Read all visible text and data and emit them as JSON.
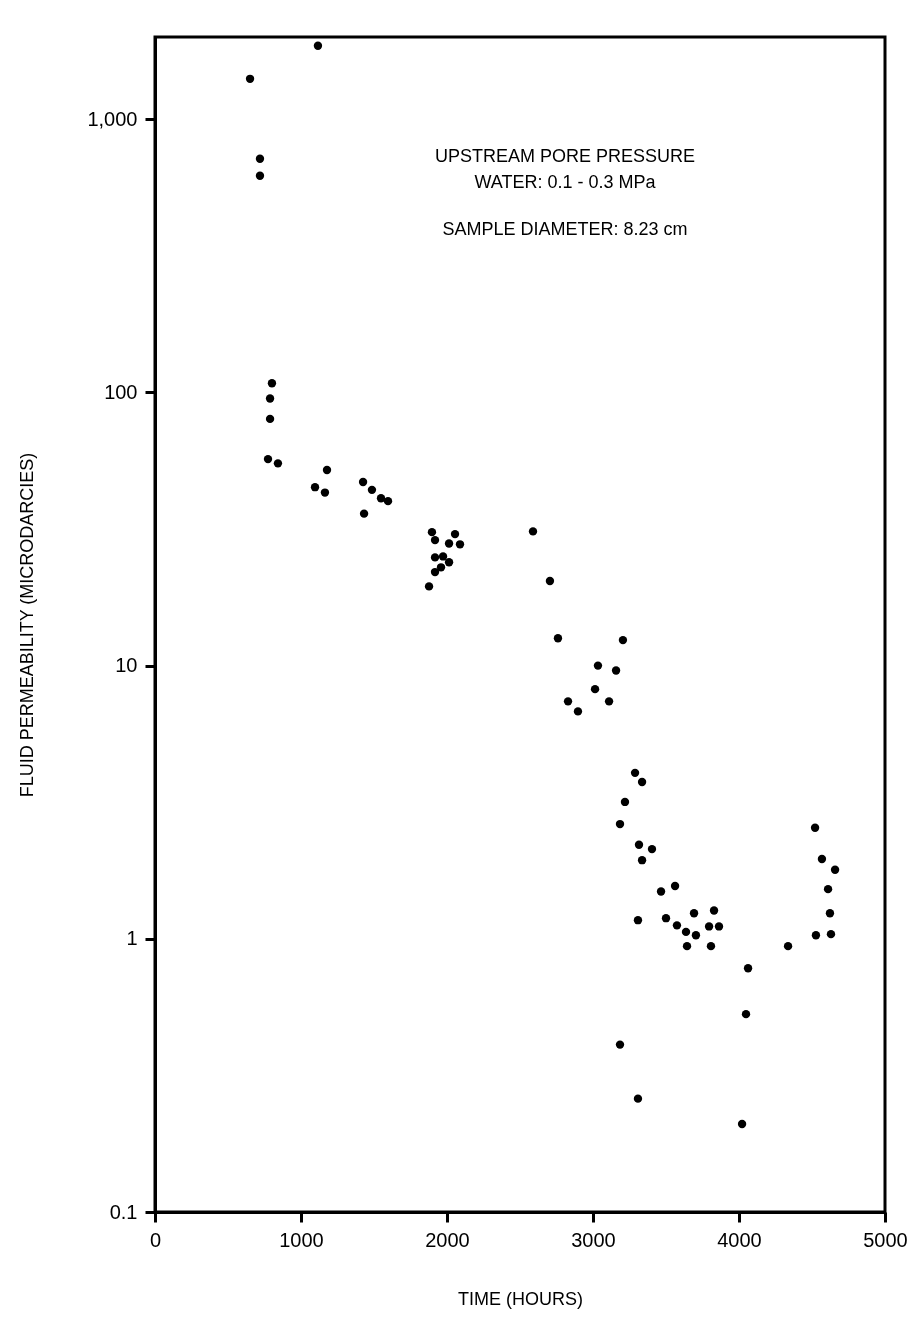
{
  "chart_data": {
    "type": "scatter",
    "xlabel": "TIME (HOURS)",
    "ylabel": "FLUID PERMEABILITY (MICRODARCIES)",
    "annotations": [
      "UPSTREAM PORE PRESSURE",
      "WATER: 0.1 - 0.3 MPa",
      "SAMPLE DIAMETER: 8.23 cm"
    ],
    "x": [
      651,
      1116,
      719,
      719,
      801,
      788,
      788,
      774,
      842,
      1178,
      1096,
      1164,
      1425,
      1486,
      1548,
      1596,
      1432,
      1897,
      1918,
      2055,
      2089,
      2014,
      1918,
      1973,
      2014,
      1959,
      1918,
      1877,
      2589,
      2705,
      2760,
      3205,
      3034,
      3158,
      3014,
      3110,
      2829,
      2897,
      3288,
      3336,
      3219,
      3185,
      3315,
      3404,
      3336,
      3466,
      3562,
      4521,
      4568,
      4658,
      4610,
      4623,
      4630,
      4527,
      4336,
      3308,
      3500,
      3575,
      3637,
      3705,
      3644,
      3692,
      3795,
      3829,
      3863,
      3808,
      4062,
      4048,
      3185,
      3308,
      4021
    ],
    "values": [
      1406,
      1857,
      717,
      621,
      108,
      95,
      80,
      57,
      55,
      52,
      45,
      43,
      47,
      44,
      41,
      40,
      36,
      30.8,
      28.8,
      30.3,
      27.8,
      28.0,
      24.9,
      25.1,
      23.9,
      22.9,
      22.0,
      19.5,
      31,
      20.4,
      12.6,
      12.4,
      10.0,
      9.6,
      8.2,
      7.4,
      7.4,
      6.8,
      4.05,
      3.75,
      3.17,
      2.63,
      2.21,
      2.13,
      1.94,
      1.49,
      1.56,
      2.55,
      1.96,
      1.79,
      1.52,
      1.24,
      1.04,
      1.03,
      0.94,
      1.17,
      1.19,
      1.12,
      1.06,
      1.03,
      0.94,
      1.24,
      1.11,
      1.27,
      1.11,
      0.94,
      0.78,
      0.53,
      0.41,
      0.26,
      0.21
    ],
    "color": "#000000",
    "marker": "circle",
    "log": "y",
    "grid": false,
    "legend": false,
    "xlim": [
      0,
      5000
    ],
    "ylim": [
      0.1,
      2000
    ],
    "xticks": [
      0,
      1000,
      2000,
      3000,
      4000,
      5000
    ],
    "yticks": [
      0.1,
      1,
      10,
      100,
      {
        "value": 1000,
        "label": "1,000"
      }
    ]
  }
}
